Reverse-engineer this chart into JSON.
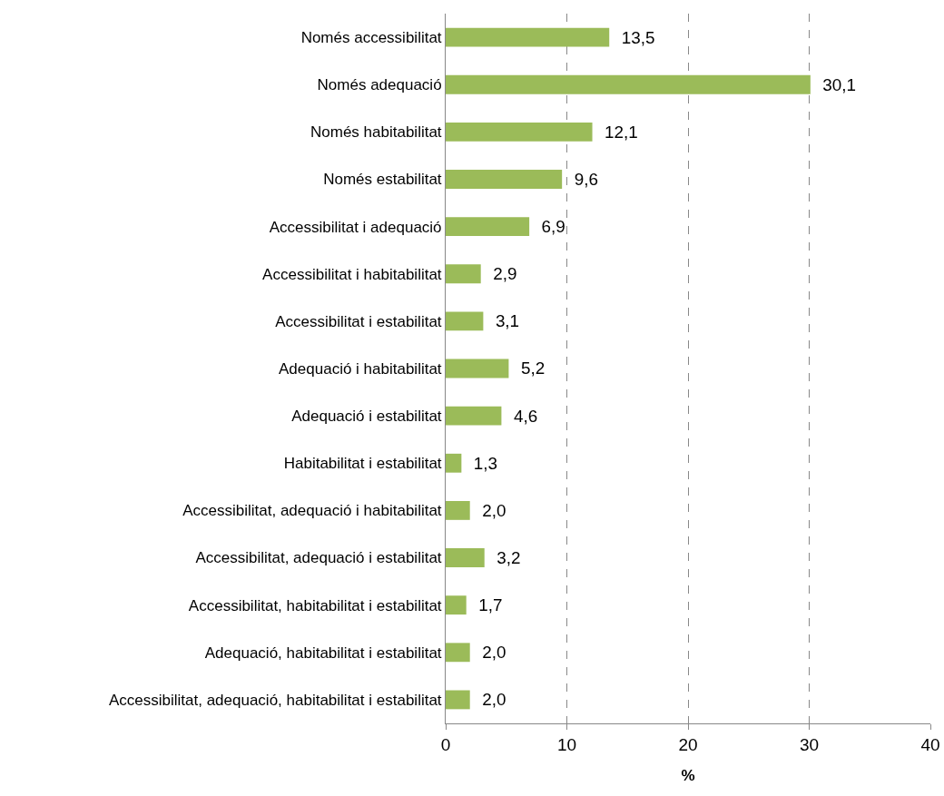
{
  "chart_data": {
    "type": "bar",
    "orientation": "horizontal",
    "categories": [
      "Només accessibilitat",
      "Només adequació",
      "Només habitabilitat",
      "Només estabilitat",
      "Accessibilitat i adequació",
      "Accessibilitat i habitabilitat",
      "Accessibilitat i estabilitat",
      "Adequació i habitabilitat",
      "Adequació i estabilitat",
      "Habitabilitat i estabilitat",
      "Accessibilitat, adequació i habitabilitat",
      "Accessibilitat, adequació i estabilitat",
      "Accessibilitat, habitabilitat i estabilitat",
      "Adequació, habitabilitat i estabilitat",
      "Accessibilitat, adequació, habitabilitat i estabilitat"
    ],
    "values": [
      13.5,
      30.1,
      12.1,
      9.6,
      6.9,
      2.9,
      3.1,
      5.2,
      4.6,
      1.3,
      2.0,
      3.2,
      1.7,
      2.0,
      2.0
    ],
    "value_labels": [
      "13,5",
      "30,1",
      "12,1",
      "9,6",
      "6,9",
      "2,9",
      "3,1",
      "5,2",
      "4,6",
      "1,3",
      "2,0",
      "3,2",
      "1,7",
      "2,0",
      "2,0"
    ],
    "color": "#9bbb59",
    "xlabel": "%",
    "xlim": [
      0,
      40
    ],
    "xticks": [
      0,
      10,
      20,
      30,
      40
    ],
    "grid": "x",
    "legend": false
  }
}
